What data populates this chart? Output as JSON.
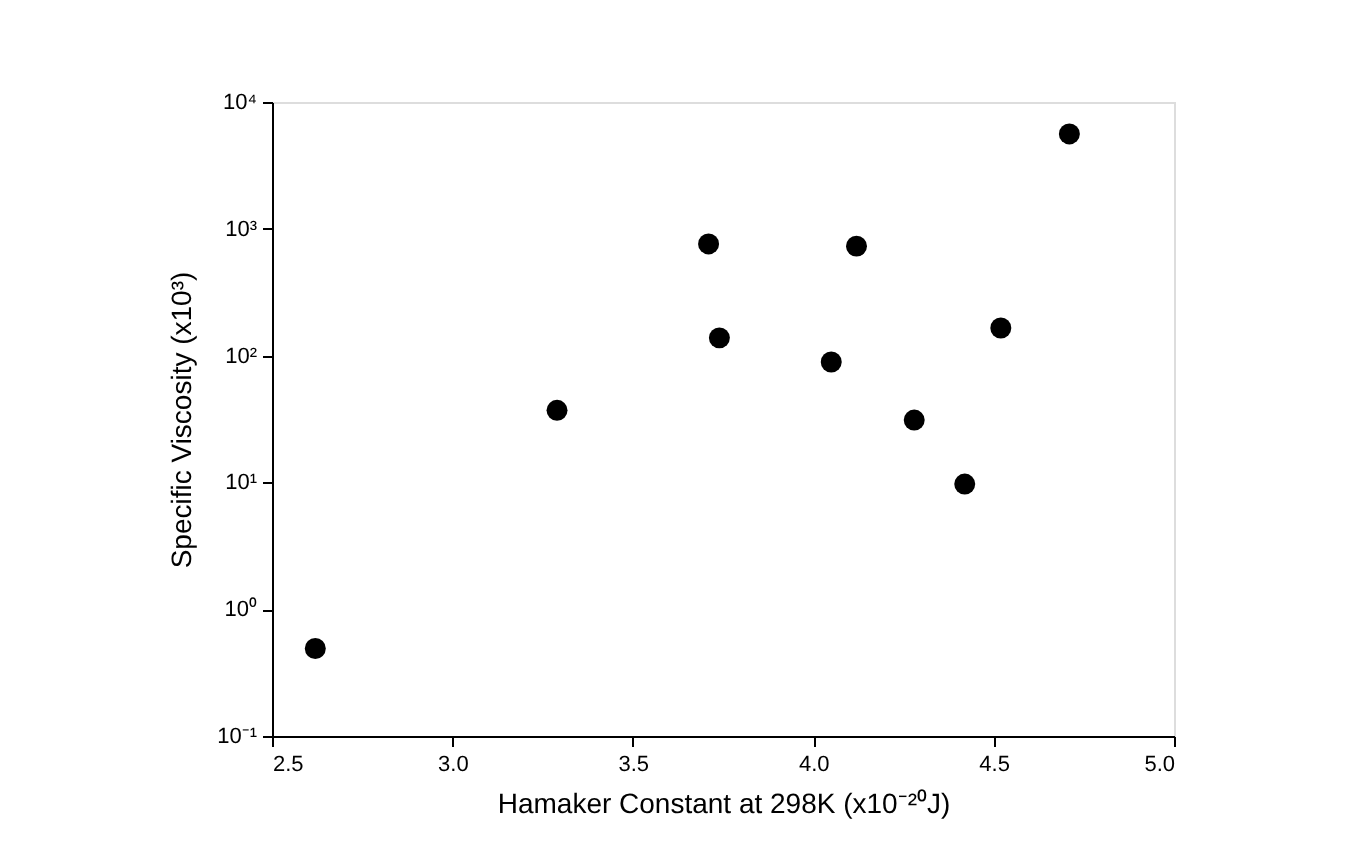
{
  "chart_data": {
    "type": "scatter",
    "xlabel": "Hamaker Constant at 298K (x10⁻²⁰J)",
    "ylabel": "Specific Viscosity (x10³)",
    "x": [
      2.62,
      3.29,
      3.71,
      3.74,
      4.05,
      4.12,
      4.28,
      4.42,
      4.52,
      4.71
    ],
    "series": [
      {
        "color": "#000000",
        "values": [
          0.49,
          37,
          760,
          138,
          89,
          730,
          31,
          9.7,
          165,
          5600
        ]
      }
    ],
    "xlim": [
      2.5,
      5.0
    ],
    "xticks": [
      2.5,
      {
        "value": 3,
        "label": "3.0"
      },
      3.5,
      {
        "value": 4,
        "label": "4.0"
      },
      4.5,
      {
        "value": 5,
        "label": "5.0"
      }
    ],
    "ylim": [
      0.1,
      10000
    ],
    "yticks": [
      {
        "value": 0.1,
        "label": "10⁻¹"
      },
      {
        "value": 1,
        "label": "10⁰"
      },
      {
        "value": 10,
        "label": "10¹"
      },
      {
        "value": 100,
        "label": "10²"
      },
      {
        "value": 1000,
        "label": "10³"
      },
      {
        "value": 10000,
        "label": "10⁴"
      }
    ],
    "log": "y",
    "grid": false,
    "marker": "circle"
  }
}
